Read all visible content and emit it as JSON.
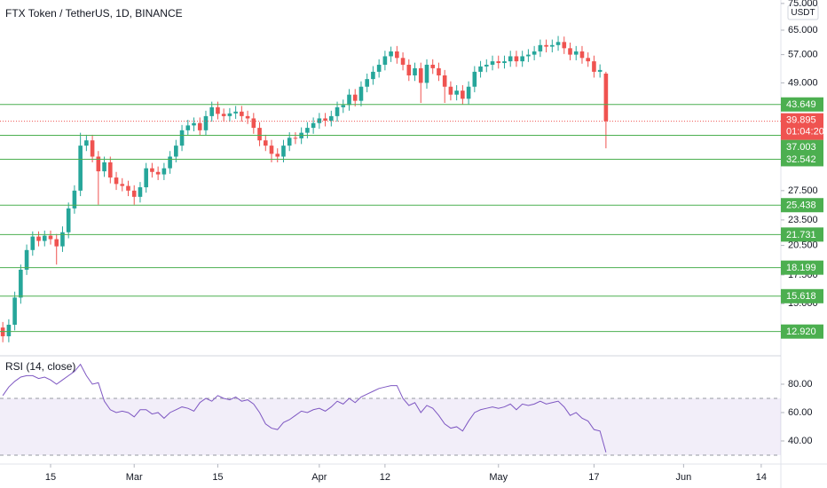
{
  "chart_data": [
    {
      "type": "candlestick",
      "title": "FTX Token / TetherUS, 1D, BINANCE",
      "currency": "USDT",
      "countdown": "01:04:20",
      "x": [
        "Feb 7",
        "Feb 8",
        "Feb 9",
        "Feb 10",
        "Feb 11",
        "Feb 12",
        "Feb 13",
        "Feb 14",
        "Feb 15",
        "Feb 16",
        "Feb 17",
        "Feb 18",
        "Feb 19",
        "Feb 20",
        "Feb 21",
        "Feb 22",
        "Feb 23",
        "Feb 24",
        "Feb 25",
        "Feb 26",
        "Feb 27",
        "Feb 28",
        "Mar 1",
        "Mar 2",
        "Mar 3",
        "Mar 4",
        "Mar 5",
        "Mar 6",
        "Mar 7",
        "Mar 8",
        "Mar 9",
        "Mar 10",
        "Mar 11",
        "Mar 12",
        "Mar 13",
        "Mar 14",
        "Mar 15",
        "Mar 16",
        "Mar 17",
        "Mar 18",
        "Mar 19",
        "Mar 20",
        "Mar 21",
        "Mar 22",
        "Mar 23",
        "Mar 24",
        "Mar 25",
        "Mar 26",
        "Mar 27",
        "Mar 28",
        "Mar 29",
        "Mar 30",
        "Mar 31",
        "Apr 1",
        "Apr 2",
        "Apr 3",
        "Apr 4",
        "Apr 5",
        "Apr 6",
        "Apr 7",
        "Apr 8",
        "Apr 9",
        "Apr 10",
        "Apr 11",
        "Apr 12",
        "Apr 13",
        "Apr 14",
        "Apr 15",
        "Apr 16",
        "Apr 17",
        "Apr 18",
        "Apr 19",
        "Apr 20",
        "Apr 21",
        "Apr 22",
        "Apr 23",
        "Apr 24",
        "Apr 25",
        "Apr 26",
        "Apr 27",
        "Apr 28",
        "Apr 29",
        "Apr 30",
        "May 1",
        "May 2",
        "May 3",
        "May 4",
        "May 5",
        "May 6",
        "May 7",
        "May 8",
        "May 9",
        "May 10",
        "May 11",
        "May 12",
        "May 13",
        "May 14",
        "May 15",
        "May 16",
        "May 17",
        "May 18",
        "May 19"
      ],
      "open": [
        13.2,
        12.6,
        13.4,
        15.5,
        18,
        20,
        21.5,
        21,
        21.6,
        21.2,
        20.4,
        22,
        25,
        27.5,
        35,
        36,
        33,
        30.5,
        32,
        29.5,
        28.5,
        28.2,
        27.5,
        26.6,
        28,
        31,
        30.4,
        30,
        31,
        33,
        35,
        38,
        39,
        39.5,
        38,
        41,
        43,
        41.5,
        41,
        41.6,
        42,
        41,
        40.5,
        38.5,
        36,
        35,
        33.5,
        33,
        35,
        36.5,
        36.4,
        37.5,
        38.5,
        39.5,
        40.5,
        40,
        41,
        43,
        43.5,
        46,
        44.5,
        48,
        50,
        52,
        54,
        56.5,
        58,
        56,
        54,
        51,
        53,
        49,
        54,
        53,
        51,
        48,
        46,
        47,
        45,
        48,
        52,
        53.5,
        54,
        55,
        54.5,
        55,
        56.5,
        55,
        56.5,
        57,
        58,
        60,
        59.5,
        60,
        61,
        59,
        57,
        58,
        56,
        55,
        52,
        51.5
      ],
      "high": [
        13.6,
        13.8,
        16.0,
        18.5,
        20.6,
        22.1,
        22.1,
        22.2,
        22.2,
        21.8,
        22.7,
        25.8,
        28.3,
        37.5,
        37.1,
        37.1,
        34.0,
        33.0,
        33.0,
        30.4,
        29.4,
        29.0,
        28.3,
        28.8,
        31.9,
        31.9,
        31.3,
        31.9,
        34.0,
        36.1,
        39.1,
        40.2,
        40.7,
        40.7,
        42.2,
        44.3,
        44.3,
        42.7,
        42.8,
        43.3,
        43.3,
        42.2,
        41.7,
        39.7,
        37.1,
        36.1,
        34.5,
        36.1,
        37.6,
        37.6,
        38.6,
        39.7,
        40.7,
        41.7,
        41.7,
        42.2,
        44.3,
        44.8,
        47.4,
        47.4,
        49.4,
        51.5,
        53.6,
        55.6,
        58.2,
        59.5,
        59.7,
        57.7,
        55.6,
        54.6,
        54.6,
        55.6,
        55.6,
        54.6,
        52.5,
        49.4,
        48.4,
        48.4,
        49.4,
        53.6,
        55.1,
        55.6,
        56.7,
        56.7,
        56.7,
        58.2,
        58.2,
        58.2,
        58.7,
        59.7,
        61.8,
        61.8,
        61.8,
        63.0,
        62.8,
        60.8,
        59.7,
        59.7,
        57.7,
        56.7,
        54.1,
        52.0
      ],
      "low": [
        12.2,
        12.2,
        13.0,
        15.0,
        17.5,
        19.4,
        20.4,
        20.4,
        20.6,
        18.5,
        19.8,
        21.3,
        24.3,
        26.7,
        34.0,
        32.0,
        25.5,
        29.6,
        28.6,
        27.6,
        27.4,
        26.7,
        25.5,
        25.8,
        27.2,
        29.5,
        29.1,
        29.1,
        30.1,
        32.0,
        34.0,
        36.9,
        37.8,
        36.9,
        36.9,
        39.8,
        40.3,
        39.8,
        39.8,
        40.4,
        39.8,
        39.3,
        37.3,
        34.9,
        34.0,
        32.0,
        32.0,
        32.0,
        34.0,
        35.3,
        35.3,
        36.4,
        37.3,
        38.3,
        38.8,
        38.8,
        39.8,
        41.7,
        42.2,
        43.2,
        43.2,
        46.6,
        48.5,
        50.4,
        52.4,
        54.8,
        54.3,
        52.4,
        49.5,
        49.5,
        44.0,
        47.5,
        51.4,
        49.5,
        44.0,
        44.6,
        44.6,
        43.7,
        43.7,
        46.6,
        50.4,
        51.9,
        52.4,
        52.9,
        52.9,
        53.4,
        53.4,
        53.4,
        54.8,
        55.3,
        56.3,
        57.7,
        57.7,
        58.2,
        57.2,
        55.3,
        55.3,
        54.3,
        53.4,
        50.4,
        50.4,
        34.5
      ],
      "close": [
        12.6,
        13.4,
        15.5,
        18,
        20,
        21.5,
        21,
        21.6,
        21.2,
        20.4,
        22,
        25,
        27.5,
        35,
        36,
        33,
        30.5,
        32,
        29.5,
        28.5,
        28.2,
        27.5,
        26.6,
        28,
        31,
        30.4,
        30,
        31,
        33,
        35,
        38,
        39,
        39.5,
        38,
        41,
        43,
        41.5,
        41,
        41.6,
        42,
        41,
        40.5,
        38.5,
        36,
        35,
        33.5,
        33,
        35,
        36.5,
        36.4,
        37.5,
        38.5,
        39.5,
        40.5,
        40,
        41,
        43,
        43.5,
        46,
        44.5,
        48,
        50,
        52,
        54,
        56.5,
        58,
        56,
        54,
        51,
        53,
        49,
        54,
        53,
        51,
        48,
        46,
        47,
        45,
        48,
        52,
        53.5,
        54,
        55,
        54.5,
        55,
        56.5,
        55,
        56.5,
        57,
        58,
        60,
        59.5,
        60,
        61,
        59,
        57,
        58,
        56,
        55,
        52,
        52.5,
        39.895
      ],
      "up_color": "#26a69a",
      "down_color": "#ef5350",
      "log": true,
      "ylim": [
        11.4,
        76.4
      ],
      "yticks": [
        {
          "value": 75,
          "label": "75.000"
        },
        {
          "value": 65,
          "label": "65.000"
        },
        {
          "value": 57,
          "label": "57.000"
        },
        {
          "value": 49,
          "label": "49.000"
        },
        {
          "value": 27.5,
          "label": "27.500"
        },
        {
          "value": 23.5,
          "label": "23.500"
        },
        {
          "value": 20.5,
          "label": "20.500"
        },
        {
          "value": 17.5,
          "label": "17.500"
        },
        {
          "value": 15,
          "label": "15.000"
        }
      ],
      "levels": [
        43.649,
        37.003,
        32.542,
        25.438,
        21.731,
        18.199,
        15.618,
        {
          "value": 12.92,
          "label": "12.920"
        }
      ],
      "level_color": "#4caf50",
      "xticks": [
        {
          "value": "Feb 15",
          "label": "15"
        },
        {
          "value": "Mar 1",
          "label": "Mar"
        },
        {
          "value": "Mar 15",
          "label": "15"
        },
        {
          "value": "Apr 1",
          "label": "Apr"
        },
        {
          "value": "Apr 12",
          "label": "12"
        },
        {
          "value": "May 1",
          "label": "May"
        },
        {
          "value": "May 17",
          "label": "17"
        },
        {
          "value": "Jun 1",
          "label": "Jun"
        },
        {
          "value": "Jun 14",
          "label": "14"
        }
      ]
    },
    {
      "type": "line",
      "title": "RSI (14, close)",
      "color": "#7e57c2",
      "values": [
        72,
        78,
        82,
        85,
        86,
        86,
        84,
        85,
        83,
        80,
        83,
        86,
        89,
        94,
        86,
        80,
        81,
        68,
        62,
        60,
        61,
        60,
        57,
        62,
        62,
        59,
        60,
        56,
        60,
        62,
        64,
        63,
        61,
        67,
        70,
        68,
        72,
        70,
        69,
        71,
        68,
        69,
        66,
        60,
        52,
        49,
        48,
        53,
        55,
        58,
        61,
        60,
        62,
        63,
        61,
        64,
        68,
        66,
        70,
        67,
        71,
        73,
        75,
        77,
        78,
        79,
        79,
        70,
        65,
        67,
        60,
        65,
        63,
        58,
        52,
        49,
        50,
        47,
        54,
        60,
        62,
        63,
        64,
        63,
        64,
        66,
        62,
        66,
        65,
        66,
        68,
        66,
        67,
        68,
        64,
        58,
        60,
        56,
        54,
        48,
        47,
        32
      ],
      "ylim": [
        25.6,
        97.5
      ],
      "yticks": [
        {
          "value": 80,
          "label": "80.00"
        },
        {
          "value": 60,
          "label": "60.00"
        },
        {
          "value": 40,
          "label": "40.00"
        }
      ],
      "band": [
        30,
        70
      ]
    }
  ]
}
